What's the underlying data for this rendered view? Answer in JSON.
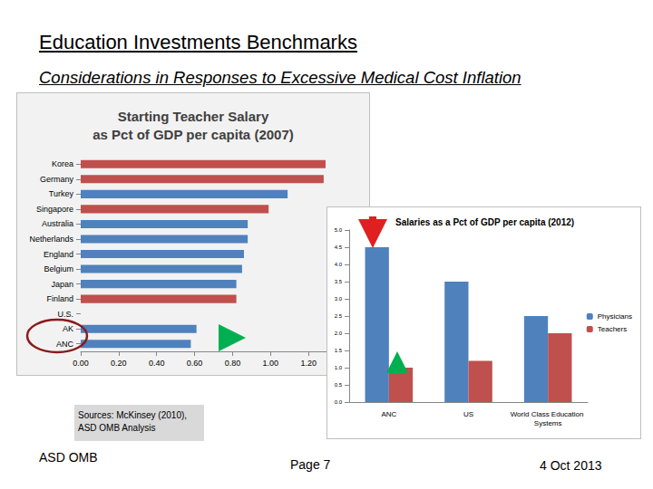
{
  "slide": {
    "title": "Education Investments Benchmarks",
    "subtitle": "Considerations in Responses to Excessive Medical Cost Inflation",
    "sources": [
      "Sources:  McKinsey (2010),",
      "ASD OMB Analysis"
    ],
    "footer_left": "ASD OMB",
    "page": "Page 7",
    "date": "4 Oct 2013"
  },
  "chart_data": [
    {
      "type": "bar",
      "orientation": "horizontal",
      "title": "Starting Teacher Salary\nas Pct of GDP per capita (2007)",
      "categories": [
        "Korea",
        "Germany",
        "Turkey",
        "Singapore",
        "Australia",
        "Netherlands",
        "England",
        "Belgium",
        "Japan",
        "Finland",
        "U.S.",
        "AK",
        "ANC"
      ],
      "values": [
        1.29,
        1.28,
        1.09,
        0.99,
        0.88,
        0.88,
        0.86,
        0.85,
        0.82,
        0.82,
        null,
        0.61,
        0.58
      ],
      "colors": [
        "#c0504d",
        "#c0504d",
        "#4f81bd",
        "#c0504d",
        "#4f81bd",
        "#4f81bd",
        "#4f81bd",
        "#4f81bd",
        "#4f81bd",
        "#c0504d",
        "#4f81bd",
        "#4f81bd",
        "#4f81bd"
      ],
      "xlim": [
        0,
        1.4
      ],
      "xticks": [
        {
          "value": 0,
          "label": "0.00"
        },
        {
          "value": 0.2,
          "label": "0.20"
        },
        {
          "value": 0.4,
          "label": "0.40"
        },
        {
          "value": 0.6,
          "label": "0.60"
        },
        {
          "value": 0.8,
          "label": "0.80"
        },
        {
          "value": 1.0,
          "label": "1.00"
        },
        {
          "value": 1.2,
          "label": "1.20"
        }
      ],
      "grid": false
    },
    {
      "type": "bar",
      "title": "Salaries as a Pct of GDP per capita (2012)",
      "categories": [
        "ANC",
        "US",
        "World Class Education Systems"
      ],
      "series": [
        {
          "name": "Physicians",
          "color": "#4f81bd",
          "values": [
            4.5,
            3.5,
            2.5
          ]
        },
        {
          "name": "Teachers",
          "color": "#c0504d",
          "values": [
            1.0,
            1.2,
            2.0
          ]
        }
      ],
      "ylim": [
        0,
        5
      ],
      "yticks": [
        {
          "value": 0,
          "label": "0.0"
        },
        {
          "value": 0.5,
          "label": "0.5"
        },
        {
          "value": 1.0,
          "label": "1.0"
        },
        {
          "value": 1.5,
          "label": "1.5"
        },
        {
          "value": 2.0,
          "label": "2.0"
        },
        {
          "value": 2.5,
          "label": "2.5"
        },
        {
          "value": 3.0,
          "label": "3.0"
        },
        {
          "value": 3.5,
          "label": "3.5"
        },
        {
          "value": 4.0,
          "label": "4.0"
        },
        {
          "value": 4.5,
          "label": "4.5"
        },
        {
          "value": 5.0,
          "label": "5.0"
        }
      ],
      "legend": "right",
      "grid": false
    }
  ]
}
